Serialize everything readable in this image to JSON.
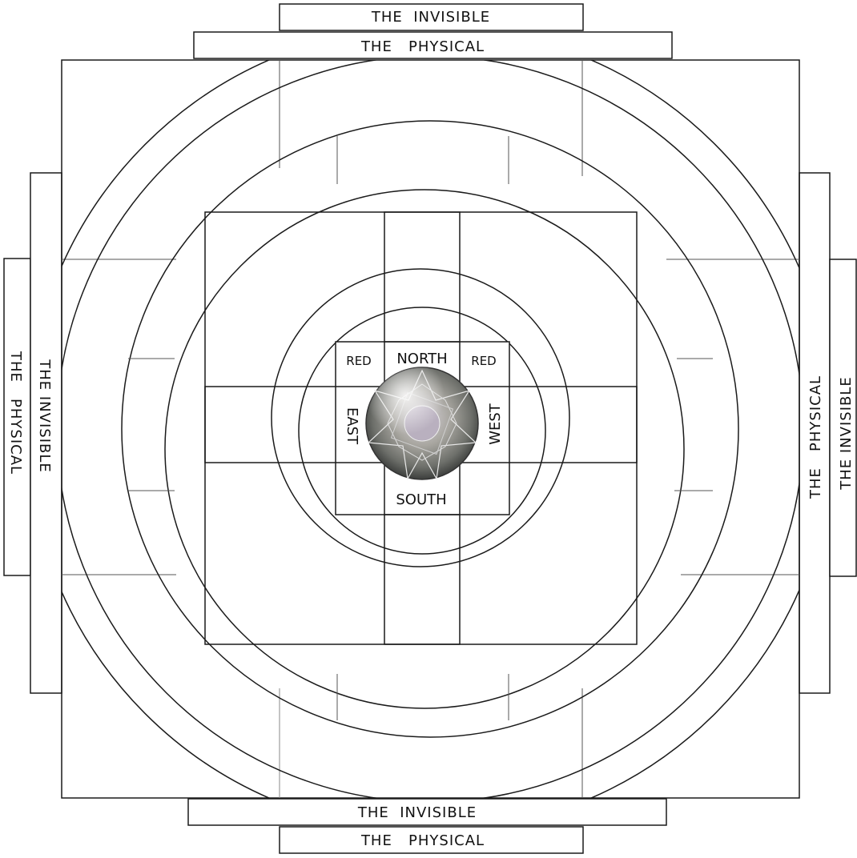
{
  "diagram": {
    "band_labels": {
      "top_outer": "THE  INVISIBLE",
      "top_inner": "THE   PHYSICAL",
      "bottom_inner": "THE  INVISIBLE",
      "bottom_outer": "THE   PHYSICAL",
      "left_inner": "THE INVISIBLE",
      "left_outer": "THE   PHYSICAL",
      "right_inner": "THE   PHYSICAL",
      "right_outer": "THE INVISIBLE"
    },
    "directions": {
      "north": "NORTH",
      "south": "SOUTH",
      "east": "EAST",
      "west": "WEST"
    },
    "corner_labels": {
      "top_left": "RED",
      "top_right": "RED"
    },
    "colors": {
      "stroke": "#1a1a1a",
      "thin_stroke": "#555555",
      "background": "#ffffff"
    }
  }
}
